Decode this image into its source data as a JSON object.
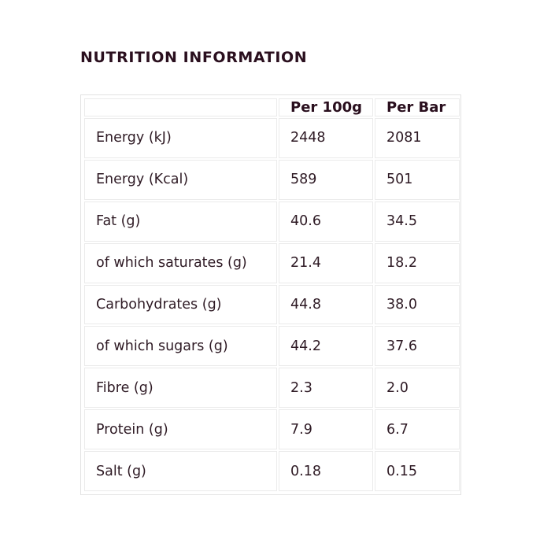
{
  "title": "NUTRITION INFORMATION",
  "table": {
    "headers": [
      "",
      "Per 100g",
      "Per Bar"
    ],
    "rows": [
      [
        "Energy (kJ)",
        "2448",
        "2081"
      ],
      [
        "Energy (Kcal)",
        "589",
        "501"
      ],
      [
        "Fat (g)",
        "40.6",
        "34.5"
      ],
      [
        "of which saturates (g)",
        "21.4",
        "18.2"
      ],
      [
        "Carbohydrates (g)",
        "44.8",
        "38.0"
      ],
      [
        "of which sugars (g)",
        "44.2",
        "37.6"
      ],
      [
        "Fibre (g)",
        "2.3",
        "2.0"
      ],
      [
        "Protein (g)",
        "7.9",
        "6.7"
      ],
      [
        "Salt (g)",
        "0.18",
        "0.15"
      ]
    ]
  },
  "colors": {
    "text": "#2e1a24",
    "heading": "#2a0f1e",
    "border": "#e3e3e3"
  }
}
